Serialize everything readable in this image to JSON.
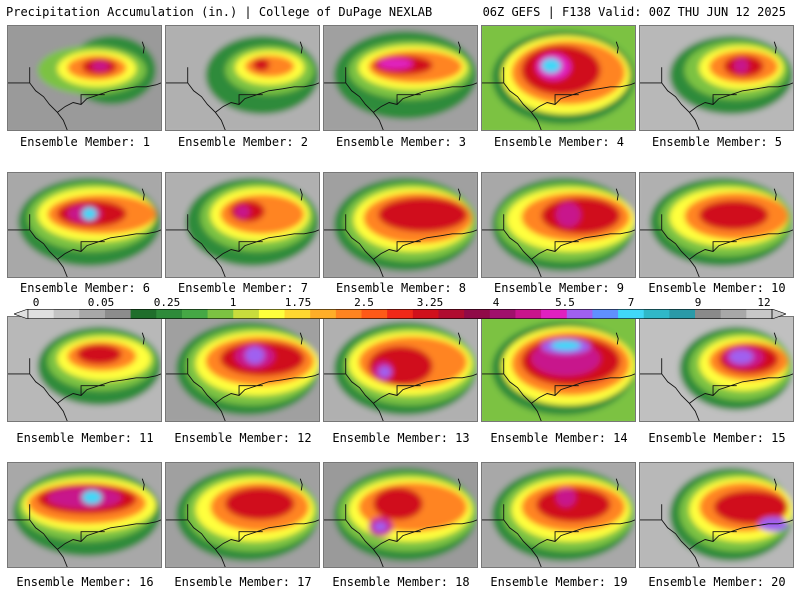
{
  "header": {
    "title_left": "Precipitation Accumulation (in.) | College of DuPage NEXLAB",
    "title_right": "06Z GEFS | F138 Valid: 00Z THU JUN 12 2025"
  },
  "panels": [
    {
      "label": "Ensemble Member: 1"
    },
    {
      "label": "Ensemble Member: 2"
    },
    {
      "label": "Ensemble Member: 3"
    },
    {
      "label": "Ensemble Member: 4"
    },
    {
      "label": "Ensemble Member: 5"
    },
    {
      "label": "Ensemble Member: 6"
    },
    {
      "label": "Ensemble Member: 7"
    },
    {
      "label": "Ensemble Member: 8"
    },
    {
      "label": "Ensemble Member: 9"
    },
    {
      "label": "Ensemble Member: 10"
    },
    {
      "label": "Ensemble Member: 11"
    },
    {
      "label": "Ensemble Member: 12"
    },
    {
      "label": "Ensemble Member: 13"
    },
    {
      "label": "Ensemble Member: 14"
    },
    {
      "label": "Ensemble Member: 15"
    },
    {
      "label": "Ensemble Member: 16"
    },
    {
      "label": "Ensemble Member: 17"
    },
    {
      "label": "Ensemble Member: 18"
    },
    {
      "label": "Ensemble Member: 19"
    },
    {
      "label": "Ensemble Member: 20"
    }
  ],
  "colorbar": {
    "labels": [
      "0",
      "0.05",
      "0.25",
      "1",
      "1.75",
      "2.5",
      "3.25",
      "4",
      "5.5",
      "7",
      "9",
      "12"
    ],
    "colors": [
      "#e0e0e0",
      "#c4c4c4",
      "#a8a8a8",
      "#8c8c8c",
      "#1f6e2b",
      "#2e8b3a",
      "#45a845",
      "#7cc242",
      "#c8dc3c",
      "#ffff3c",
      "#ffd830",
      "#ffae28",
      "#ff8420",
      "#ff5a18",
      "#f02818",
      "#d0101c",
      "#b00c30",
      "#900a48",
      "#a0106c",
      "#c8148c",
      "#e020c0",
      "#a060f0",
      "#6090ff",
      "#40d8f8",
      "#30b8c8",
      "#2a9aa8",
      "#8a8a8a",
      "#a8a8a8",
      "#c8c8c8"
    ]
  }
}
